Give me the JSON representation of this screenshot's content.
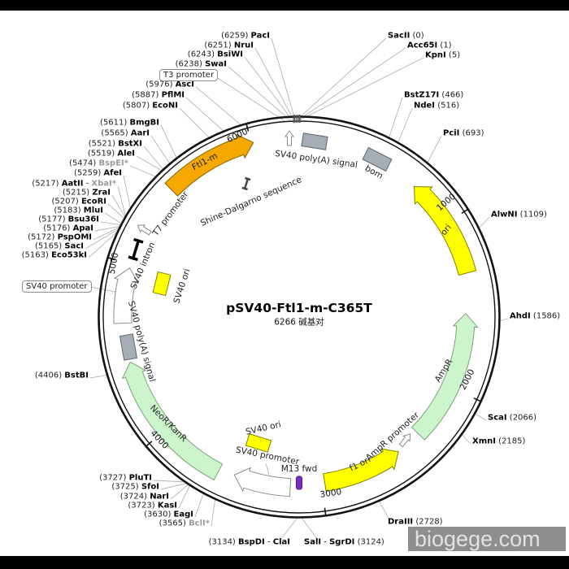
{
  "title": "pSV40-Ftl1-m-C365T",
  "size_label": "6266 碱基对",
  "watermark": "biogege.com",
  "boxed_labels": {
    "t3": "T3 promoter",
    "sv40": "SV40 promoter"
  },
  "ticks": [
    "1000",
    "2000",
    "3000",
    "4000",
    "5000",
    "6000"
  ],
  "features": [
    "Ftl1-m",
    "SV40 poly(A) signal",
    "bom",
    "ori",
    "AmpR",
    "AmpR promoter",
    "f1 ori",
    "M13 fwd",
    "SV40 promoter",
    "SV40 ori",
    "NeoR/KanR",
    "SV40 poly(A) signal",
    "SV40 intron",
    "SV40 ori",
    "T7 promoter",
    "Shine-Dalgarno sequence"
  ],
  "sites": [
    {
      "pre": "(6259) ",
      "name": "PacI"
    },
    {
      "pre": "(6251) ",
      "name": "NruI"
    },
    {
      "pre": "(6243) ",
      "name": "BsiWI"
    },
    {
      "pre": "(6238) ",
      "name": "SwaI"
    },
    {
      "pre": "(5976) ",
      "name": "AscI"
    },
    {
      "pre": "(5887) ",
      "name": "PflMI"
    },
    {
      "pre": "(5807) ",
      "name": "EcoNI"
    },
    {
      "pre": "(5611) ",
      "name": "BmgBI"
    },
    {
      "pre": "(5565) ",
      "name": "AarI"
    },
    {
      "pre": "(5521) ",
      "name": "BstXI"
    },
    {
      "pre": "(5519) ",
      "name": "AleI"
    },
    {
      "pre": "(5474) ",
      "name": "BspEI*",
      "dim": true
    },
    {
      "pre": "(5259) ",
      "name": "AfeI"
    },
    {
      "pre": "(5217) ",
      "name": "AatII",
      "mid": " - ",
      "name2": "XbaI*",
      "dim2": true
    },
    {
      "pre": "(5215) ",
      "name": "ZraI"
    },
    {
      "pre": "(5207) ",
      "name": "EcoRI"
    },
    {
      "pre": "(5183) ",
      "name": "MluI"
    },
    {
      "pre": "(5177) ",
      "name": "Bsu36I"
    },
    {
      "pre": "(5176) ",
      "name": "ApaI"
    },
    {
      "pre": "(5172) ",
      "name": "PspOMI"
    },
    {
      "pre": "(5165) ",
      "name": "SacI"
    },
    {
      "pre": "(5163) ",
      "name": "Eco53kI"
    },
    {
      "pre": "(4406) ",
      "name": "BstBI"
    },
    {
      "pre": "(3727) ",
      "name": "PluTI"
    },
    {
      "pre": "(3725) ",
      "name": "SfoI"
    },
    {
      "pre": "(3724) ",
      "name": "NarI"
    },
    {
      "pre": "(3723) ",
      "name": "KasI"
    },
    {
      "pre": "(3630) ",
      "name": "EagI"
    },
    {
      "pre": "(3565) ",
      "name": "BclI*",
      "dim": true
    },
    {
      "pre": "(3134) ",
      "name": "BspDI",
      "mid": " - ",
      "name2": "ClaI"
    },
    {
      "name": "SalI",
      "mid": " - ",
      "name2": "SgrDI",
      "post": " (3124)"
    },
    {
      "name": "SacII",
      "post": " (0)"
    },
    {
      "name": "Acc65I",
      "post": " (1)"
    },
    {
      "name": "KpnI",
      "post": " (5)"
    },
    {
      "name": "BstZ17I",
      "post": " (466)"
    },
    {
      "name": "NdeI",
      "post": " (516)"
    },
    {
      "name": "PciI",
      "post": " (693)"
    },
    {
      "name": "AlwNI",
      "post": " (1109)"
    },
    {
      "name": "AhdI",
      "post": " (1586)"
    },
    {
      "name": "ScaI",
      "post": " (2066)"
    },
    {
      "name": "XmnI",
      "post": " (2185)"
    },
    {
      "name": "DraIII",
      "post": " (2728)"
    }
  ]
}
